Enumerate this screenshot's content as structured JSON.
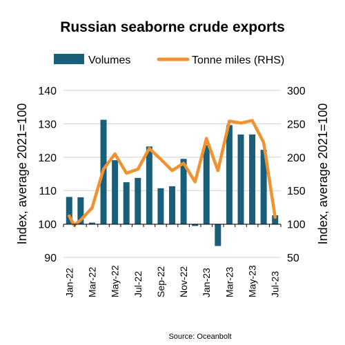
{
  "chart_data": {
    "type": "bar+line",
    "title": "Russian seaborne crude exports",
    "source": "Source: Oceanbolt",
    "ylabel": "Index, average 2021=100",
    "y_left": {
      "ylim": [
        90,
        140
      ],
      "ticks": [
        90,
        100,
        110,
        120,
        130,
        140
      ]
    },
    "y_right": {
      "ylim": [
        50,
        300
      ],
      "ticks": [
        50,
        100,
        150,
        200,
        250,
        300
      ]
    },
    "x_tick_labels": [
      "Jan-22",
      "Mar-22",
      "May-22",
      "Jul-22",
      "Sep-22",
      "Nov-22",
      "Jan-23",
      "Mar-23",
      "May-23",
      "Jul-23"
    ],
    "categories": [
      "Jan-22",
      "Feb-22",
      "Mar-22",
      "Apr-22",
      "May-22",
      "Jun-22",
      "Jul-22",
      "Aug-22",
      "Sep-22",
      "Oct-22",
      "Nov-22",
      "Dec-22",
      "Jan-23",
      "Feb-23",
      "Mar-23",
      "Apr-23",
      "May-23",
      "Jun-23",
      "Jul-23"
    ],
    "grid": true,
    "legend_position": "top",
    "series": [
      {
        "name": "Volumes",
        "type": "bar",
        "axis": "left",
        "color": "#1a5f7a",
        "values": [
          108.1,
          108.0,
          100.4,
          131.2,
          119.1,
          112.5,
          113.8,
          123.2,
          110.7,
          111.3,
          119.5,
          99.4,
          123.6,
          93.4,
          129.6,
          126.8,
          126.8,
          122.2,
          102.6
        ]
      },
      {
        "name": "Tonne miles (RHS)",
        "type": "line",
        "axis": "right",
        "color": "#f0922f",
        "values": [
          [
            0.0,
            112
          ],
          [
            0.42,
            98
          ],
          [
            1.0,
            106
          ],
          [
            2.0,
            124
          ],
          [
            3.0,
            182
          ],
          [
            4.0,
            205
          ],
          [
            5.0,
            176
          ],
          [
            6.0,
            182
          ],
          [
            7.0,
            213
          ],
          [
            8.0,
            197
          ],
          [
            9.0,
            180
          ],
          [
            10.0,
            191
          ],
          [
            11.0,
            163
          ],
          [
            12.0,
            228
          ],
          [
            13.0,
            180
          ],
          [
            14.0,
            254
          ],
          [
            15.0,
            251
          ],
          [
            16.0,
            255
          ],
          [
            17.0,
            222
          ],
          [
            18.0,
            110
          ]
        ]
      }
    ]
  }
}
